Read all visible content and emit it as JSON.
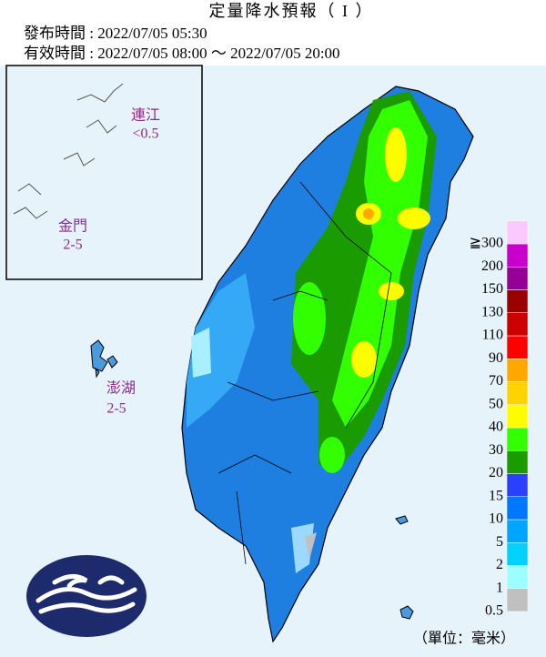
{
  "header": {
    "title": "定量降水預報（ I ）",
    "issued": "發布時間 : 2022/07/05 05:30",
    "valid": "有效時間 : 2022/07/05 08:00 ～ 2022/07/05 20:00"
  },
  "places": [
    {
      "name": "連江",
      "value": "<0.5"
    },
    {
      "name": "金門",
      "value": "2-5"
    },
    {
      "name": "澎湖",
      "value": "2-5"
    }
  ],
  "legend": {
    "labels": [
      "0.5",
      "1",
      "2",
      "5",
      "10",
      "15",
      "20",
      "30",
      "40",
      "50",
      "70",
      "90",
      "110",
      "130",
      "150",
      "200",
      "≧300"
    ],
    "colors": [
      "#c0c0c0",
      "#9dfeff",
      "#01d2fd",
      "#00a5fe",
      "#0177fd",
      "#2b3ffe",
      "#1a9b00",
      "#32ff00",
      "#fefd00",
      "#ffd300",
      "#ffa800",
      "#fe0000",
      "#cc0000",
      "#9a0000",
      "#960099",
      "#c900cc",
      "#fbc9fe"
    ],
    "unit": "（單位：毫米）"
  }
}
